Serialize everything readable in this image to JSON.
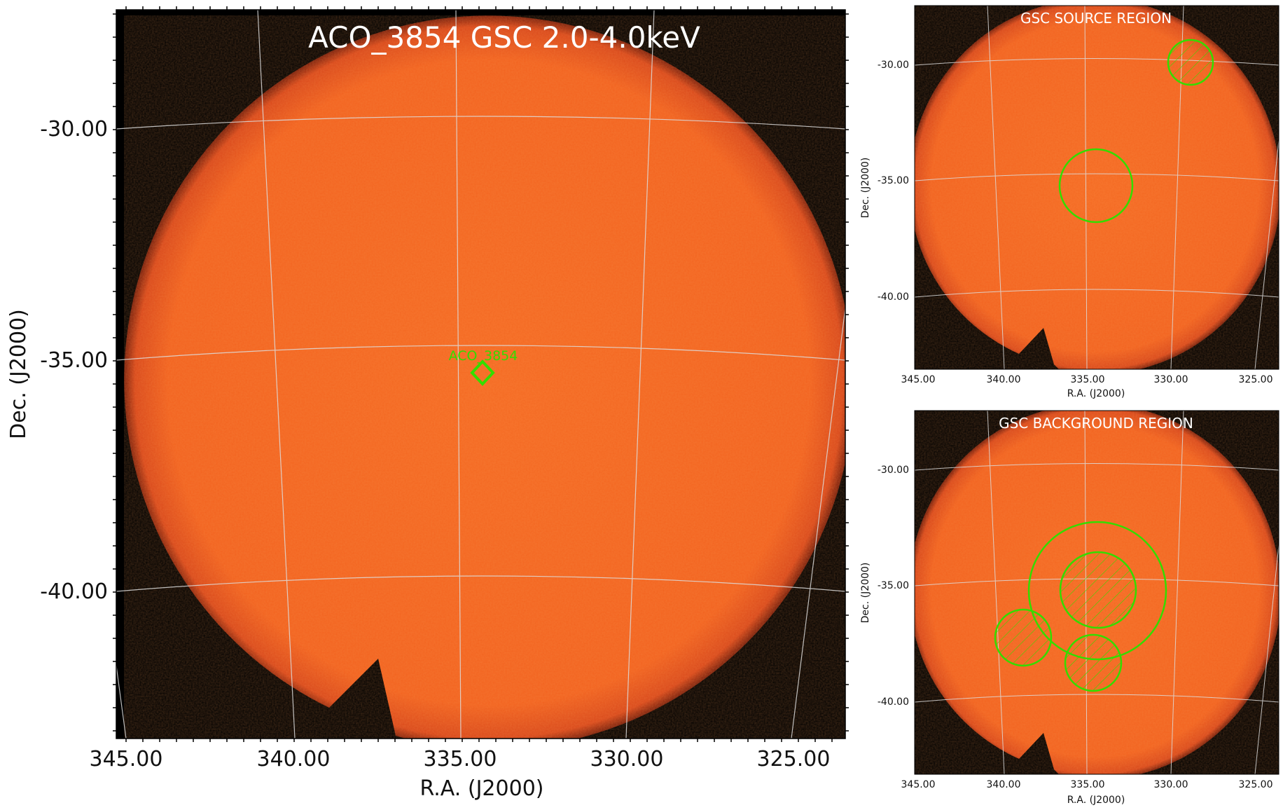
{
  "main_panel": {
    "title": "ACO_3854 GSC 2.0-4.0keV",
    "source_label": "ACO_3854",
    "xlabel": "R.A. (J2000)",
    "ylabel": "Dec. (J2000)",
    "xticks": [
      "345.00",
      "340.00",
      "335.00",
      "330.00",
      "325.00"
    ],
    "yticks": [
      "-30.00",
      "-35.00",
      "-40.00"
    ]
  },
  "source_panel": {
    "title": "GSC SOURCE REGION",
    "xlabel": "R.A. (J2000)",
    "ylabel": "Dec. (J2000)",
    "xticks": [
      "345.00",
      "340.00",
      "335.00",
      "330.00",
      "325.00"
    ],
    "yticks": [
      "-30.00",
      "-35.00",
      "-40.00"
    ]
  },
  "background_panel": {
    "title": "GSC BACKGROUND REGION",
    "xlabel": "R.A. (J2000)",
    "ylabel": "Dec. (J2000)",
    "xticks": [
      "345.00",
      "340.00",
      "335.00",
      "330.00",
      "325.00"
    ],
    "yticks": [
      "-30.00",
      "-35.00",
      "-40.00"
    ]
  },
  "colors": {
    "image": "#f2621f",
    "image_edge": "#c8401a",
    "frame_bg": "#000000",
    "region": "#33dd00",
    "grid": "#dddddd"
  }
}
